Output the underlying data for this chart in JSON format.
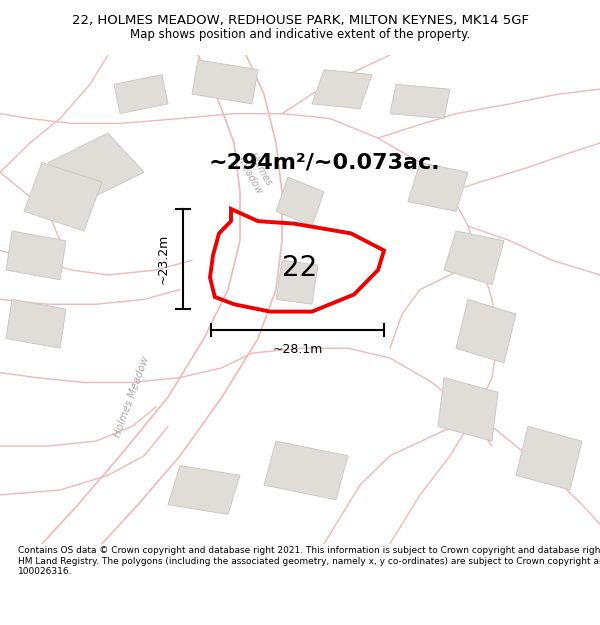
{
  "title": "22, HOLMES MEADOW, REDHOUSE PARK, MILTON KEYNES, MK14 5GF",
  "subtitle": "Map shows position and indicative extent of the property.",
  "copyright": "Contains OS data © Crown copyright and database right 2021. This information is subject to Crown copyright and database rights 2023 and is reproduced with the permission of\nHM Land Registry. The polygons (including the associated geometry, namely x, y co-ordinates) are subject to Crown copyright and database rights 2023 Ordnance Survey\n100026316.",
  "area_label": "~294m²/~0.073ac.",
  "dim_h": "~28.1m",
  "dim_v": "~23.2m",
  "property_number": "22",
  "map_bg": "#f5f3f0",
  "road_color": "#f0b8b8",
  "building_fill": "#e0ddd8",
  "building_edge": "#c8c4be",
  "property_color": "#ee0000",
  "road_label_color": "#aaa8a4",
  "title_fontsize": 9.5,
  "subtitle_fontsize": 8.5,
  "area_fontsize": 16,
  "number_fontsize": 20,
  "dim_fontsize": 9,
  "copy_fontsize": 6.5
}
